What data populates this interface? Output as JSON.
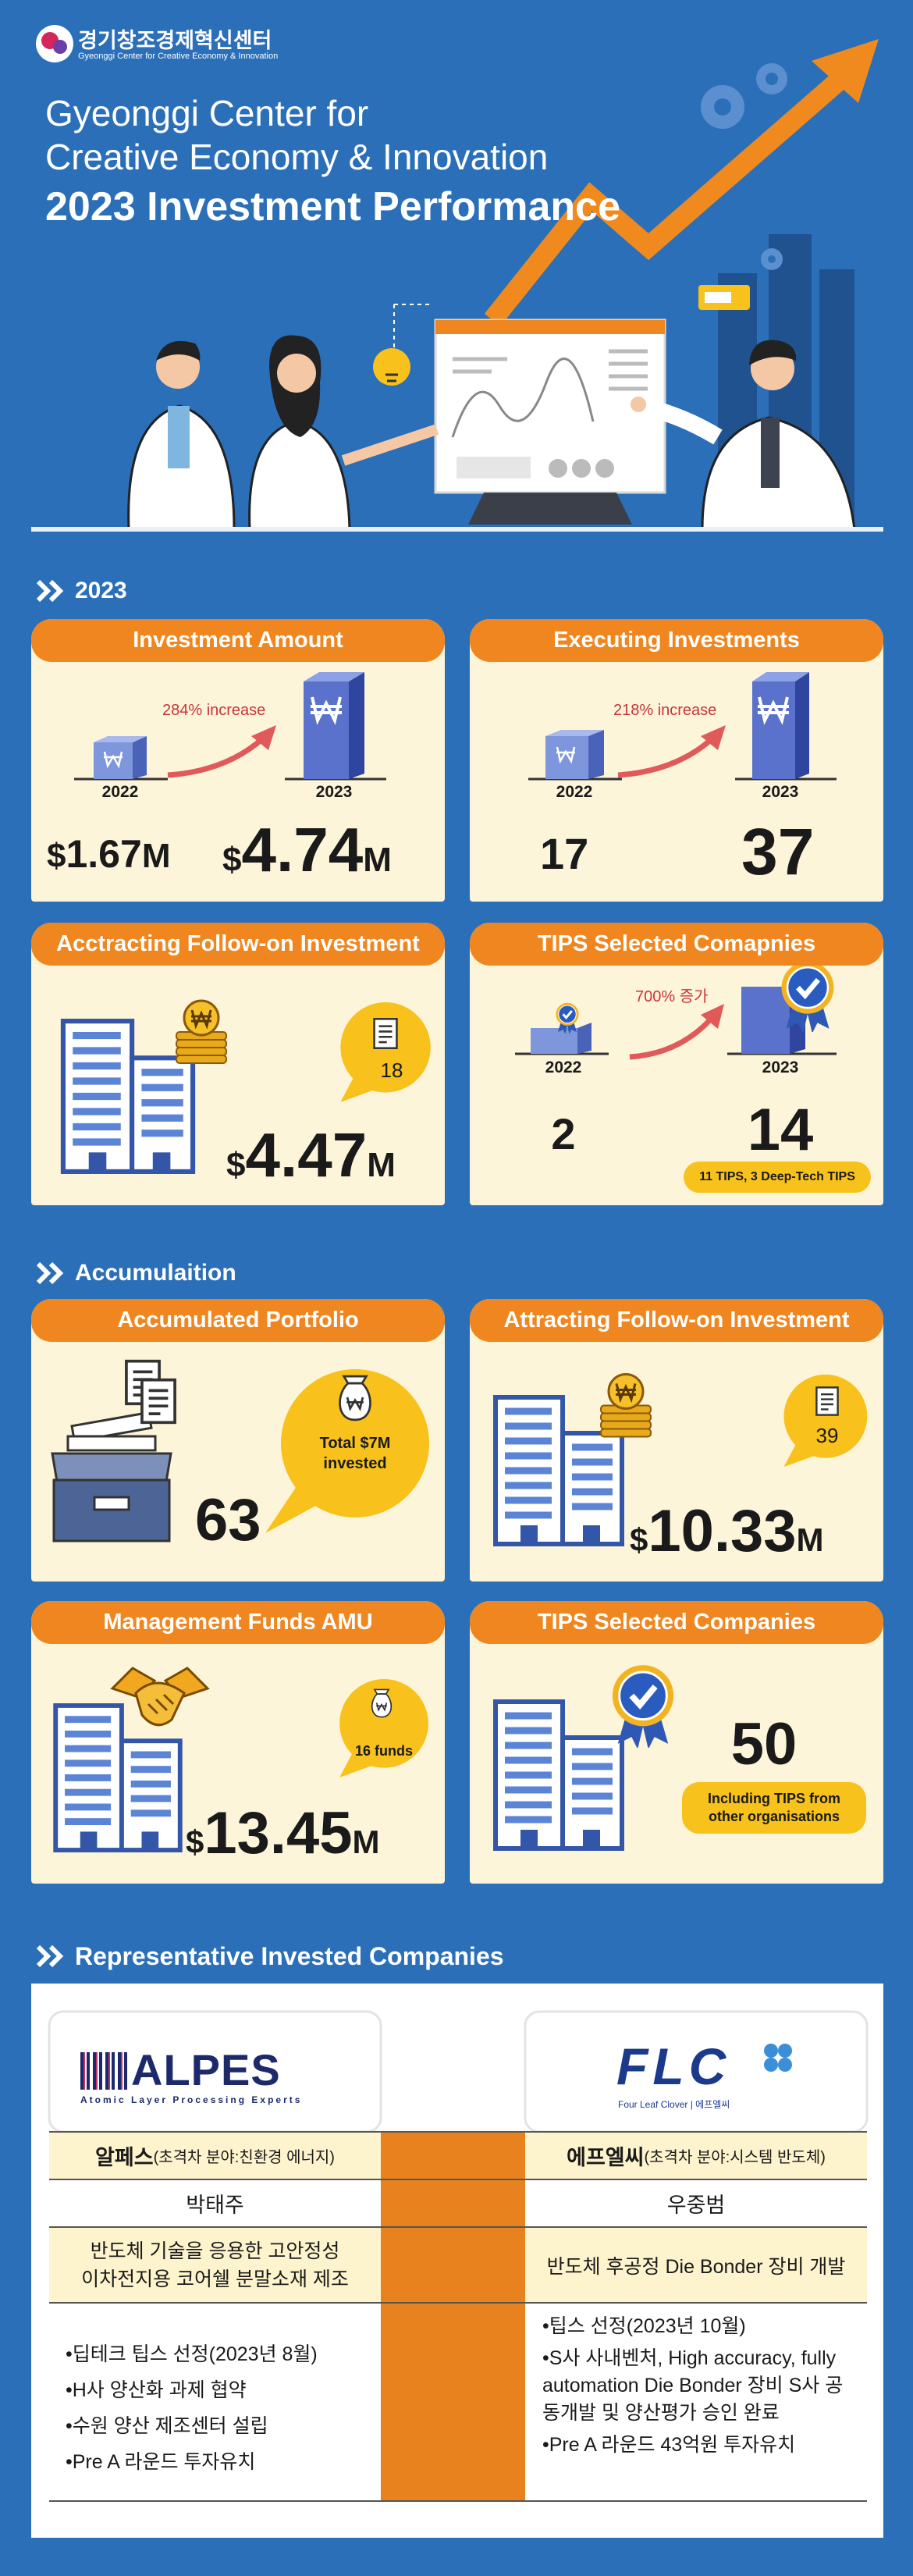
{
  "header": {
    "logo_name": "경기창조경제혁신센터",
    "logo_subtitle": "Gyeonggi Center for Creative Economy & Innovation",
    "title_lines": [
      "Gyeonggi Center for",
      "Creative Economy & Innovation"
    ],
    "title_highlight": "2023 Investment Performance"
  },
  "section_2023": {
    "heading": "2023",
    "cards": [
      {
        "title": "Investment Amount",
        "increase": "284% increase",
        "year_before": "2022",
        "year_after": "2023",
        "value_before": {
          "prefix": "$",
          "number": "1.67",
          "suffix": "M"
        },
        "value_after": {
          "prefix": "$",
          "number": "4.74",
          "suffix": "M"
        }
      },
      {
        "title": "Executing Investments",
        "increase": "218% increase",
        "year_before": "2022",
        "year_after": "2023",
        "value_before": "17",
        "value_after": "37"
      },
      {
        "title": "Acctracting Follow-on Investment",
        "badge": "18",
        "value": {
          "prefix": "$",
          "number": "4.47",
          "suffix": "M"
        }
      },
      {
        "title": "TIPS Selected Comapnies",
        "increase": "700% 증가",
        "year_before": "2022",
        "year_after": "2023",
        "value_before": "2",
        "value_after": "14",
        "note": "11 TIPS, 3 Deep-Tech TIPS"
      }
    ]
  },
  "section_accumulation": {
    "heading": "Accumulaition",
    "cards": [
      {
        "title": "Accumulated Portfolio",
        "value": "63",
        "bubble": "Total $7M invested"
      },
      {
        "title": "Attracting Follow-on Investment",
        "badge": "39",
        "value": {
          "prefix": "$",
          "number": "10.33",
          "suffix": "M"
        }
      },
      {
        "title": "Management Funds AMU",
        "badge": "16 funds",
        "value": {
          "prefix": "$",
          "number": "13.45",
          "suffix": "M"
        }
      },
      {
        "title": "TIPS Selected Companies",
        "value": "50",
        "note": "Including TIPS from other organisations"
      }
    ]
  },
  "section_companies": {
    "heading": "Representative Invested Companies",
    "companies": [
      {
        "logo": "ALPES",
        "logo_subtitle": "Atomic Layer Processing Experts",
        "name": "알페스",
        "field": "(초격차 분야:친환경 에너지)",
        "ceo": "박태주",
        "description": [
          "반도체 기술을 응용한 고안정성",
          "이차전지용 코어쉘 분말소재 제조"
        ],
        "highlights": [
          "•딥테크 팁스 선정(2023년 8월)",
          "•H사 양산화 과제 협약",
          "•수원 양산 제조센터 설립",
          "•Pre A 라운드 투자유치"
        ]
      },
      {
        "logo": "FLC",
        "logo_subtitle": "Four Leaf Clover | 에프엘씨",
        "name": "에프엘씨",
        "field": "(초격차 분야:시스템 반도체)",
        "ceo": "우중범",
        "description": [
          "반도체 후공정 Die Bonder 장비 개발"
        ],
        "highlights": [
          "•팁스 선정(2023년 10월)",
          "•S사 사내벤처, High accuracy, fully automation Die Bonder 장비 S사 공동개발 및 양산평가 승인 완료",
          "•Pre A 라운드 43억원 투자유치"
        ]
      }
    ]
  }
}
